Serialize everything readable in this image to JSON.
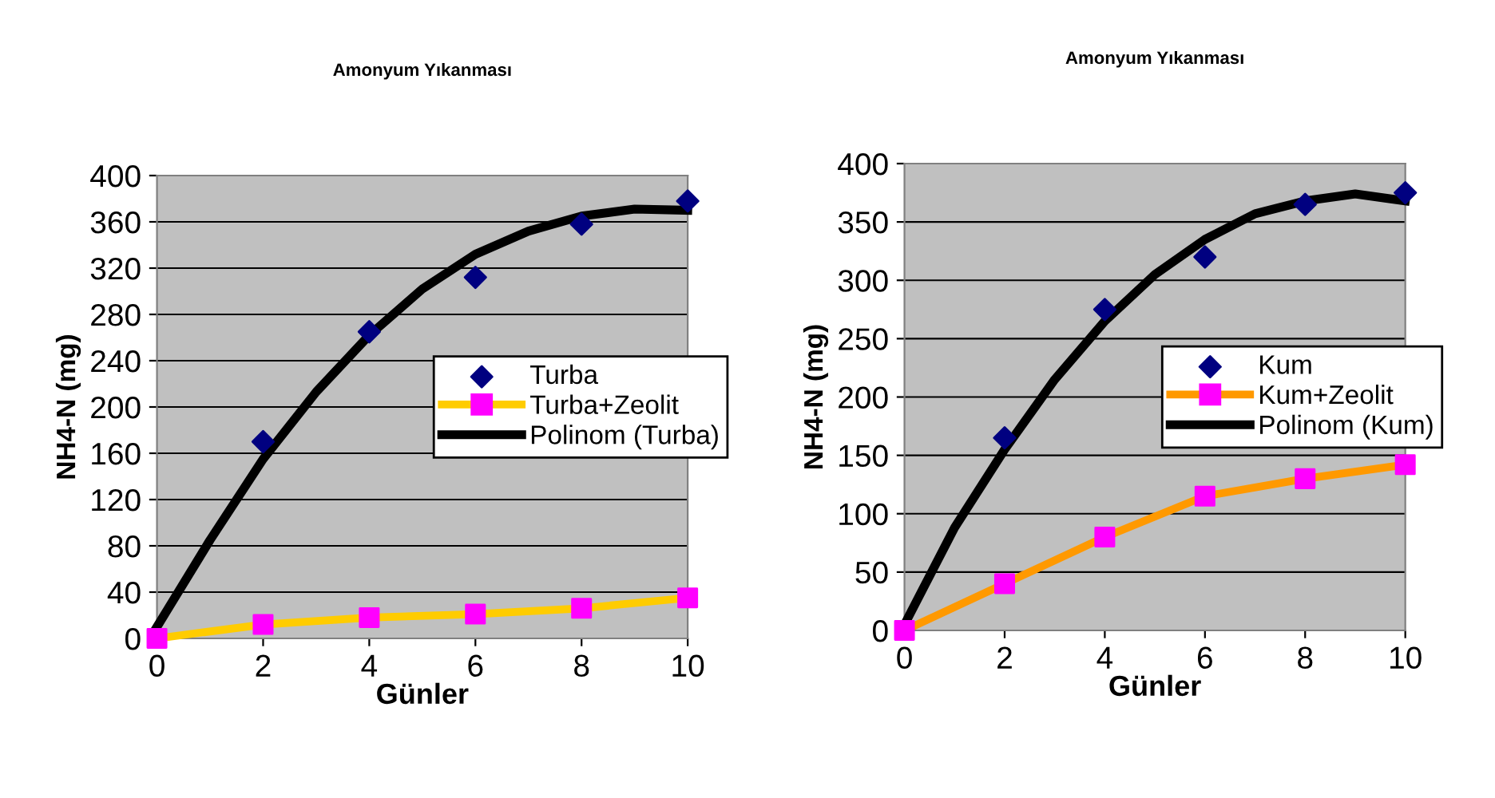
{
  "chart_data": [
    {
      "type": "scatter",
      "title": "Amonyum Yıkanması",
      "xlabel": "Günler",
      "ylabel": "NH4-N (mg)",
      "xlim": [
        0,
        10
      ],
      "xticks": [
        0,
        2,
        4,
        6,
        8,
        10
      ],
      "ylim": [
        0,
        400
      ],
      "yticks": [
        0,
        40,
        80,
        120,
        160,
        200,
        240,
        280,
        320,
        360,
        400
      ],
      "grid": "y",
      "legend": "center right",
      "series": [
        {
          "name": "Turba",
          "marker": "diamond",
          "color": "#000080",
          "x": [
            2,
            4,
            6,
            8,
            10
          ],
          "values": [
            170,
            265,
            312,
            358,
            378
          ]
        },
        {
          "name": "Turba+Zeolit",
          "type": "line",
          "marker": "square",
          "color": "#ffcc00",
          "colors": [
            "#ff00ff",
            "#ff00ff",
            "#ff00ff",
            "#ff00ff",
            "#ff00ff",
            "#ff00ff"
          ],
          "x": [
            0,
            2,
            4,
            6,
            8,
            10
          ],
          "values": [
            0,
            12,
            18,
            21,
            26,
            35
          ]
        },
        {
          "name": "Polinom (Turba)",
          "type": "line",
          "marker": "none",
          "color": "#000000",
          "x": [
            0,
            1,
            2,
            3,
            4,
            5,
            6,
            7,
            8,
            9,
            10
          ],
          "values": [
            10,
            85,
            155,
            213,
            262,
            302,
            332,
            352,
            365,
            371,
            370
          ]
        }
      ]
    },
    {
      "type": "scatter",
      "title": "Amonyum Yıkanması",
      "xlabel": "Günler",
      "ylabel": "NH4-N (mg)",
      "xlim": [
        0,
        10
      ],
      "xticks": [
        0,
        2,
        4,
        6,
        8,
        10
      ],
      "ylim": [
        0,
        400
      ],
      "yticks": [
        0,
        50,
        100,
        150,
        200,
        250,
        300,
        350,
        400
      ],
      "grid": "y",
      "legend": "center right",
      "series": [
        {
          "name": "Kum",
          "marker": "diamond",
          "color": "#000080",
          "x": [
            2,
            4,
            6,
            8,
            10
          ],
          "values": [
            165,
            275,
            320,
            365,
            375
          ]
        },
        {
          "name": "Kum+Zeolit",
          "type": "line",
          "marker": "square",
          "color": "#ff9900",
          "colors": [
            "#ff00ff",
            "#ff00ff",
            "#ff00ff",
            "#ff00ff",
            "#ff00ff",
            "#ff00ff"
          ],
          "x": [
            0,
            2,
            4,
            6,
            8,
            10
          ],
          "values": [
            0,
            40,
            80,
            115,
            130,
            142
          ]
        },
        {
          "name": "Polinom (Kum)",
          "type": "line",
          "marker": "none",
          "color": "#000000",
          "x": [
            0,
            1,
            2,
            3,
            4,
            5,
            6,
            7,
            8,
            9,
            10
          ],
          "values": [
            5,
            88,
            155,
            215,
            265,
            305,
            335,
            357,
            368,
            374,
            368
          ]
        }
      ]
    }
  ]
}
